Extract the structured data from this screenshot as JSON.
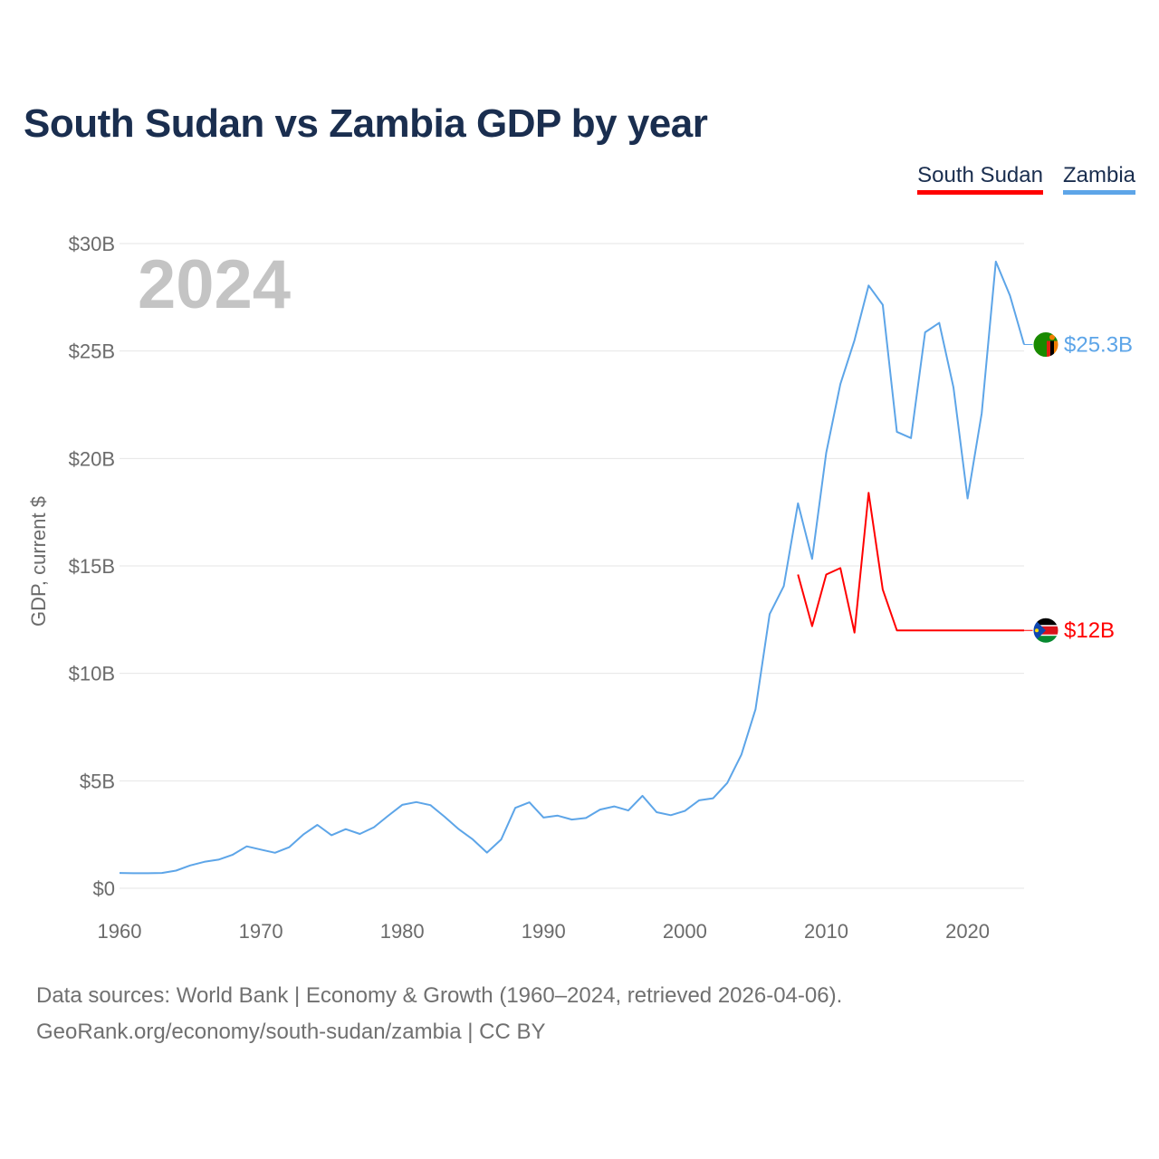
{
  "title": "South Sudan vs Zambia GDP by year",
  "legend": {
    "items": [
      {
        "label": "South Sudan",
        "color": "#ff0000"
      },
      {
        "label": "Zambia",
        "color": "#5da5e8"
      }
    ]
  },
  "footer": {
    "line1": "Data sources: World Bank | Economy & Growth (1960–2024, retrieved 2026-04-06).",
    "line2": "GeoRank.org/economy/south-sudan/zambia | CC BY"
  },
  "chart_data": {
    "type": "line",
    "title": "South Sudan vs Zambia GDP by year",
    "xlabel": "",
    "ylabel": "GDP, current $",
    "year_watermark": "2024",
    "xlim": [
      1960,
      2024
    ],
    "ylim": [
      0,
      30
    ],
    "x_ticks": [
      1960,
      1970,
      1980,
      1990,
      2000,
      2010,
      2020
    ],
    "x_tick_labels": [
      "1960",
      "1970",
      "1980",
      "1990",
      "2000",
      "2010",
      "2020"
    ],
    "y_ticks": [
      0,
      5,
      10,
      15,
      20,
      25,
      30
    ],
    "y_tick_labels": [
      "$0",
      "$5B",
      "$10B",
      "$15B",
      "$20B",
      "$25B",
      "$30B"
    ],
    "grid": true,
    "legend_position": "top-right",
    "series": [
      {
        "name": "Zambia",
        "color": "#5da5e8",
        "end_label": "$25.3B",
        "flag_icon": "zambia-flag-icon",
        "x": [
          1960,
          1961,
          1962,
          1963,
          1964,
          1965,
          1966,
          1967,
          1968,
          1969,
          1970,
          1971,
          1972,
          1973,
          1974,
          1975,
          1976,
          1977,
          1978,
          1979,
          1980,
          1981,
          1982,
          1983,
          1984,
          1985,
          1986,
          1987,
          1988,
          1989,
          1990,
          1991,
          1992,
          1993,
          1994,
          1995,
          1996,
          1997,
          1998,
          1999,
          2000,
          2001,
          2002,
          2003,
          2004,
          2005,
          2006,
          2007,
          2008,
          2009,
          2010,
          2011,
          2012,
          2013,
          2014,
          2015,
          2016,
          2017,
          2018,
          2019,
          2020,
          2021,
          2022,
          2023,
          2024
        ],
        "values": [
          0.71,
          0.7,
          0.7,
          0.71,
          0.82,
          1.06,
          1.23,
          1.33,
          1.56,
          1.95,
          1.8,
          1.65,
          1.91,
          2.5,
          2.95,
          2.47,
          2.75,
          2.53,
          2.84,
          3.37,
          3.88,
          4.01,
          3.87,
          3.33,
          2.75,
          2.27,
          1.66,
          2.27,
          3.74,
          4.0,
          3.29,
          3.38,
          3.2,
          3.27,
          3.66,
          3.81,
          3.62,
          4.3,
          3.54,
          3.4,
          3.6,
          4.09,
          4.19,
          4.9,
          6.22,
          8.33,
          12.76,
          14.06,
          17.91,
          15.33,
          20.27,
          23.46,
          25.5,
          28.05,
          27.15,
          21.24,
          20.95,
          25.87,
          26.31,
          23.31,
          18.14,
          22.1,
          29.16,
          27.58,
          25.3
        ]
      },
      {
        "name": "South Sudan",
        "color": "#ff0000",
        "end_label": "$12B",
        "flag_icon": "south-sudan-flag-icon",
        "x": [
          2008,
          2009,
          2010,
          2011,
          2012,
          2013,
          2014,
          2015,
          2016,
          2017,
          2018,
          2019,
          2020,
          2021,
          2022,
          2023,
          2024
        ],
        "values": [
          14.6,
          12.2,
          14.6,
          14.9,
          11.9,
          18.4,
          13.9,
          12.0,
          12.0,
          12.0,
          12.0,
          12.0,
          12.0,
          12.0,
          12.0,
          12.0,
          12.0
        ]
      }
    ]
  }
}
